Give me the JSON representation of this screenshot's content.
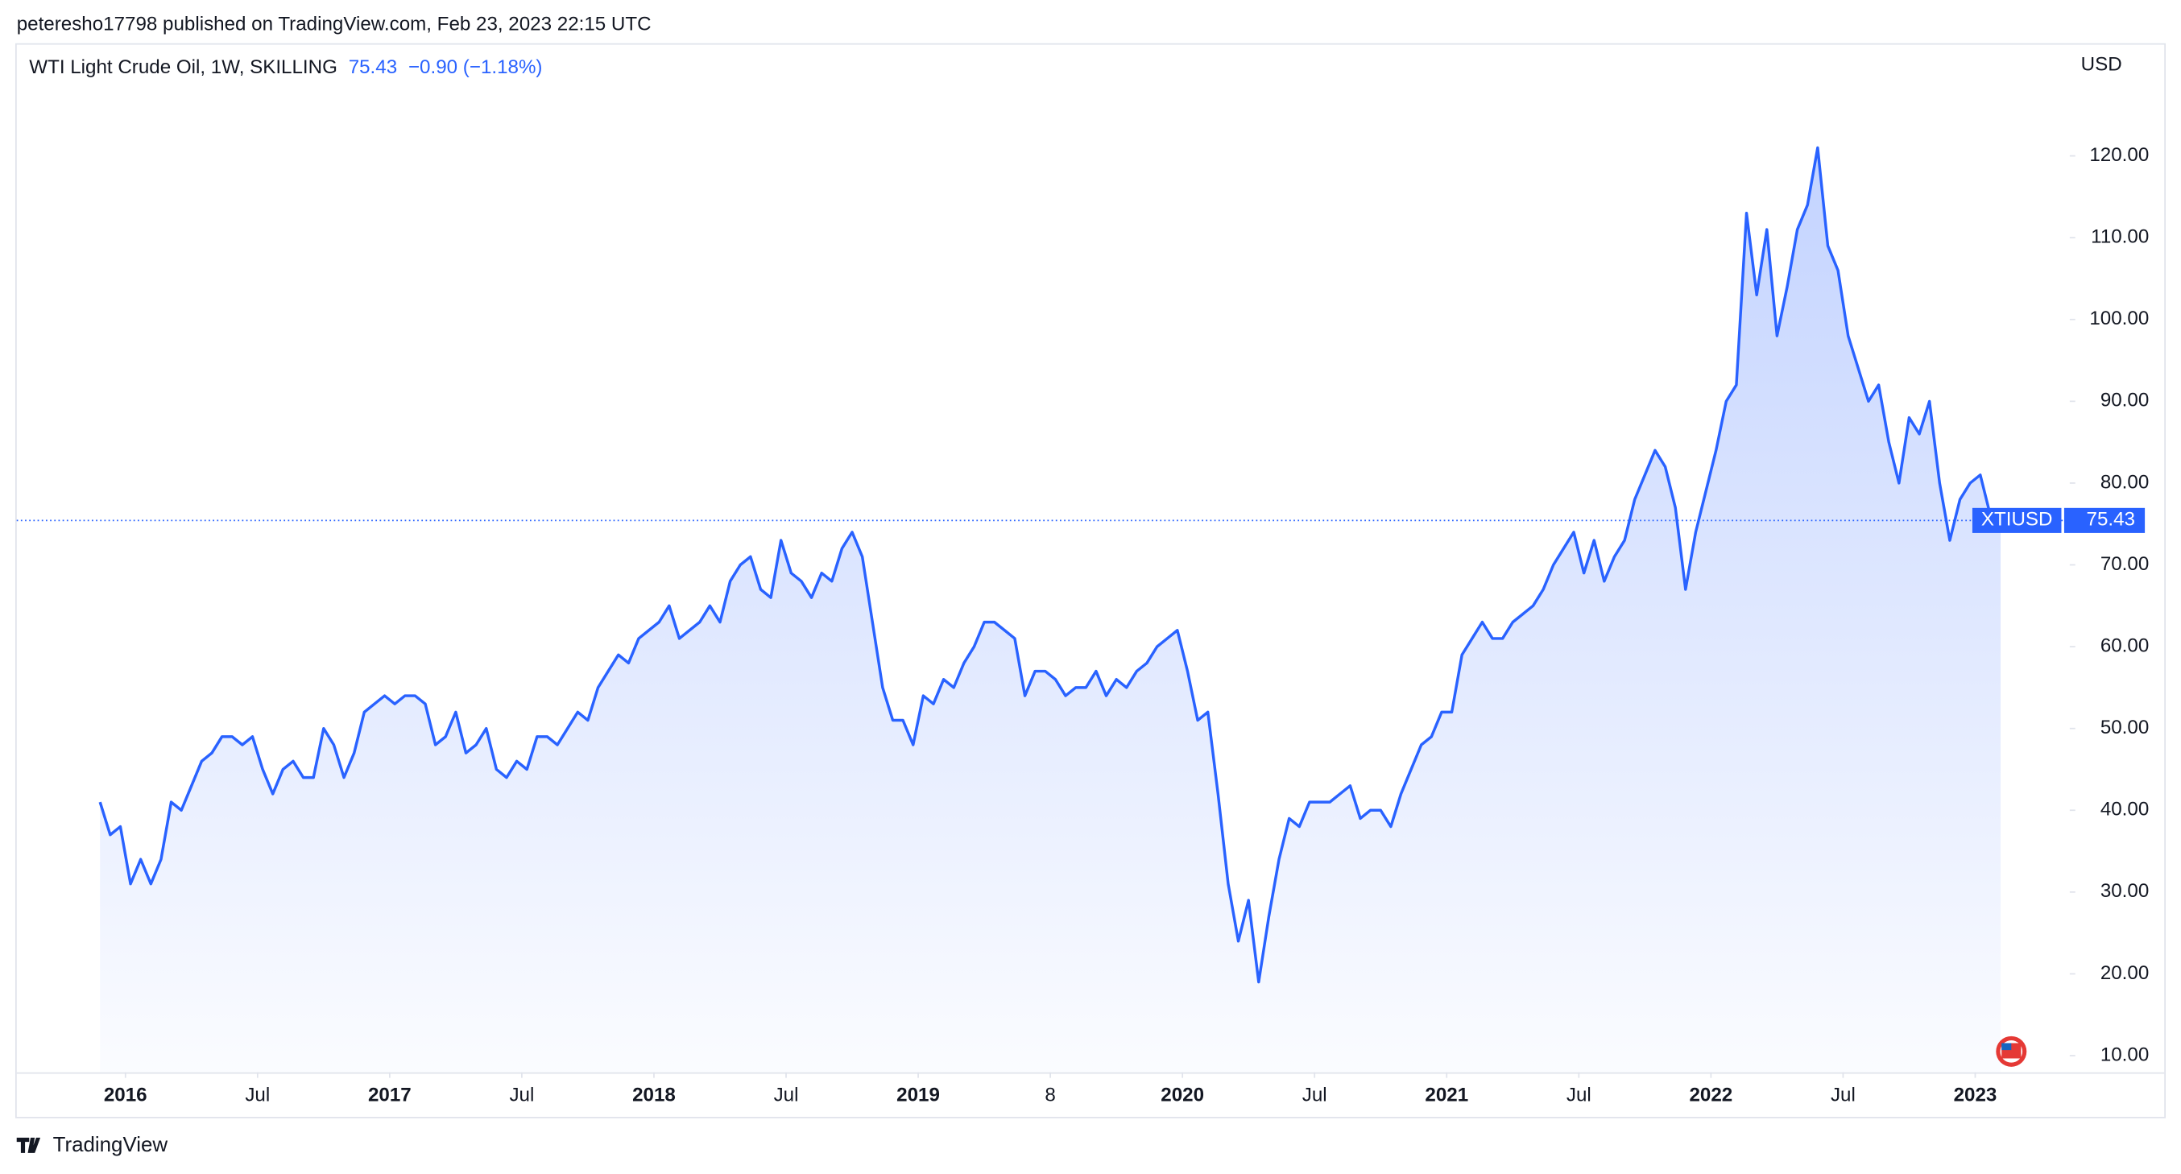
{
  "header": {
    "published": "peteresho17798 published on TradingView.com, Feb 23, 2023 22:15 UTC"
  },
  "footer": {
    "brand": "TradingView"
  },
  "chart_data": {
    "type": "line",
    "title": "WTI Light Crude Oil, 1W, SKILLING",
    "change_label": "−0.90 (−1.18%)",
    "y_label": "USD",
    "symbol": "XTIUSD",
    "color": "#2962ff",
    "values": [
      41,
      37,
      38,
      31,
      34,
      31,
      34,
      41,
      40,
      43,
      46,
      47,
      49,
      49,
      48,
      49,
      45,
      42,
      45,
      46,
      44,
      44,
      50,
      48,
      44,
      47,
      52,
      53,
      54,
      53,
      54,
      54,
      53,
      48,
      49,
      52,
      47,
      48,
      50,
      45,
      44,
      46,
      45,
      49,
      49,
      48,
      50,
      52,
      51,
      55,
      57,
      59,
      58,
      61,
      62,
      63,
      65,
      61,
      62,
      63,
      65,
      63,
      68,
      70,
      71,
      67,
      66,
      73,
      69,
      68,
      66,
      69,
      68,
      72,
      74,
      71,
      63,
      55,
      51,
      51,
      48,
      54,
      53,
      56,
      55,
      58,
      60,
      63,
      63,
      62,
      61,
      54,
      57,
      57,
      56,
      54,
      55,
      55,
      57,
      54,
      56,
      55,
      57,
      58,
      60,
      61,
      62,
      57,
      51,
      52,
      42,
      31,
      24,
      29,
      19,
      27,
      34,
      39,
      38,
      41,
      41,
      41,
      42,
      43,
      39,
      40,
      40,
      38,
      42,
      45,
      48,
      49,
      52,
      52,
      59,
      61,
      63,
      61,
      61,
      63,
      64,
      65,
      67,
      70,
      72,
      74,
      69,
      73,
      68,
      71,
      73,
      78,
      81,
      84,
      82,
      77,
      67,
      74,
      79,
      84,
      90,
      92,
      113,
      103,
      111,
      98,
      104,
      111,
      114,
      121,
      109,
      106,
      98,
      94,
      90,
      92,
      85,
      80,
      88,
      86,
      90,
      80,
      73,
      78,
      80,
      81,
      76,
      75.43
    ],
    "xlim": [
      -8.2,
      193.8
    ],
    "xticks": [
      {
        "value": 2.5,
        "label": "2016"
      },
      {
        "value": 15.5,
        "label": "Jul"
      },
      {
        "value": 28.5,
        "label": "2017"
      },
      {
        "value": 41.5,
        "label": "Jul"
      },
      {
        "value": 54.5,
        "label": "2018"
      },
      {
        "value": 67.5,
        "label": "Jul"
      },
      {
        "value": 80.5,
        "label": "2019"
      },
      {
        "value": 93.5,
        "label": "8"
      },
      {
        "value": 106.5,
        "label": "2020"
      },
      {
        "value": 119.5,
        "label": "Jul"
      },
      {
        "value": 132.5,
        "label": "2021"
      },
      {
        "value": 145.5,
        "label": "Jul"
      },
      {
        "value": 158.5,
        "label": "2022"
      },
      {
        "value": 171.5,
        "label": "Jul"
      },
      {
        "value": 184.5,
        "label": "2023"
      }
    ],
    "ylim": [
      7.96,
      133.6
    ],
    "yticks": [
      {
        "value": 10,
        "label": "10.00"
      },
      {
        "value": 20,
        "label": "20.00"
      },
      {
        "value": 30,
        "label": "30.00"
      },
      {
        "value": 40,
        "label": "40.00"
      },
      {
        "value": 50,
        "label": "50.00"
      },
      {
        "value": 60,
        "label": "60.00"
      },
      {
        "value": 70,
        "label": "70.00"
      },
      {
        "value": 80,
        "label": "80.00"
      },
      {
        "value": 90,
        "label": "90.00"
      },
      {
        "value": 100,
        "label": "100.00"
      },
      {
        "value": 110,
        "label": "110.00"
      },
      {
        "value": 120,
        "label": "120.00"
      }
    ]
  }
}
